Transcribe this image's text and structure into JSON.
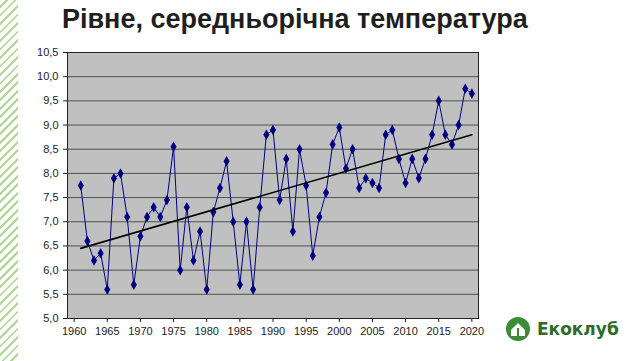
{
  "chart_data": {
    "type": "line",
    "title": "Рівне, середньорічна температура",
    "x": [
      1961,
      1962,
      1963,
      1964,
      1965,
      1966,
      1967,
      1968,
      1969,
      1970,
      1971,
      1972,
      1973,
      1974,
      1975,
      1976,
      1977,
      1978,
      1979,
      1980,
      1981,
      1982,
      1983,
      1984,
      1985,
      1986,
      1987,
      1988,
      1989,
      1990,
      1991,
      1992,
      1993,
      1994,
      1995,
      1996,
      1997,
      1998,
      1999,
      2000,
      2001,
      2002,
      2003,
      2004,
      2005,
      2006,
      2007,
      2008,
      2009,
      2010,
      2011,
      2012,
      2013,
      2014,
      2015,
      2016,
      2017,
      2018,
      2019,
      2020
    ],
    "series": [
      {
        "values": [
          7.75,
          6.6,
          6.2,
          6.35,
          5.6,
          7.9,
          8.0,
          7.1,
          5.7,
          6.7,
          7.1,
          7.3,
          7.1,
          7.45,
          8.55,
          6.0,
          7.3,
          6.2,
          6.8,
          5.6,
          7.2,
          7.7,
          8.25,
          7.0,
          5.7,
          7.0,
          5.6,
          7.3,
          8.8,
          8.9,
          7.45,
          8.3,
          6.8,
          8.5,
          7.75,
          6.3,
          7.1,
          7.6,
          8.6,
          8.95,
          8.1,
          8.5,
          7.7,
          7.9,
          7.8,
          7.7,
          8.8,
          8.9,
          8.3,
          7.8,
          8.3,
          7.9,
          8.3,
          8.8,
          9.5,
          8.8,
          8.6,
          9.0,
          9.75,
          9.65
        ],
        "color": "#000080",
        "marker": "diamond",
        "line_style": "solid"
      },
      {
        "x": [
          1961,
          2020
        ],
        "values": [
          6.45,
          8.8
        ],
        "color": "#000000",
        "marker": "none",
        "line_style": "solid"
      }
    ],
    "xlim": [
      1959,
      2021
    ],
    "xticks": [
      1960,
      1965,
      1970,
      1975,
      1980,
      1985,
      1990,
      1995,
      2000,
      2005,
      2010,
      2015,
      2020
    ],
    "ylim": [
      5,
      10.5
    ],
    "yticks": [
      {
        "value": 5,
        "label": "5,0"
      },
      {
        "value": 5.5,
        "label": "5,5"
      },
      {
        "value": 6,
        "label": "6,0"
      },
      {
        "value": 6.5,
        "label": "6,5"
      },
      {
        "value": 7,
        "label": "7,0"
      },
      {
        "value": 7.5,
        "label": "7,5"
      },
      {
        "value": 8,
        "label": "8,0"
      },
      {
        "value": 8.5,
        "label": "8,5"
      },
      {
        "value": 9,
        "label": "9,0"
      },
      {
        "value": 9.5,
        "label": "9,5"
      },
      {
        "value": 10,
        "label": "10,0"
      },
      {
        "value": 10.5,
        "label": "10,5"
      }
    ],
    "grid": true
  },
  "logo": "Екоклуб"
}
